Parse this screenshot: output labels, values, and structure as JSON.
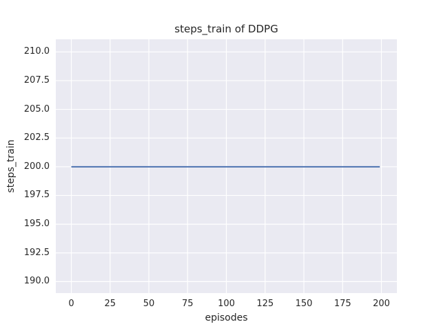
{
  "chart_data": {
    "type": "line",
    "title": "steps_train of DDPG",
    "xlabel": "episodes",
    "ylabel": "steps_train",
    "xlim": [
      -10,
      210
    ],
    "ylim": [
      189.0,
      211.1
    ],
    "xticks": [
      0,
      25,
      50,
      75,
      100,
      125,
      150,
      175,
      200
    ],
    "yticks": [
      190.0,
      192.5,
      195.0,
      197.5,
      200.0,
      202.5,
      205.0,
      207.5,
      210.0
    ],
    "ytick_decimals": 1,
    "grid": true,
    "legend_position": "none",
    "series": [
      {
        "name": "steps_train",
        "color": "#4c72b0",
        "x": [
          0,
          199
        ],
        "y": [
          200,
          200
        ]
      }
    ]
  },
  "style": {
    "figure_background": "#ffffff",
    "plot_background": "#eaeaf2",
    "grid_color": "#ffffff",
    "text_color": "#262626",
    "line_color": "#4c72b0",
    "line_width": 2
  }
}
